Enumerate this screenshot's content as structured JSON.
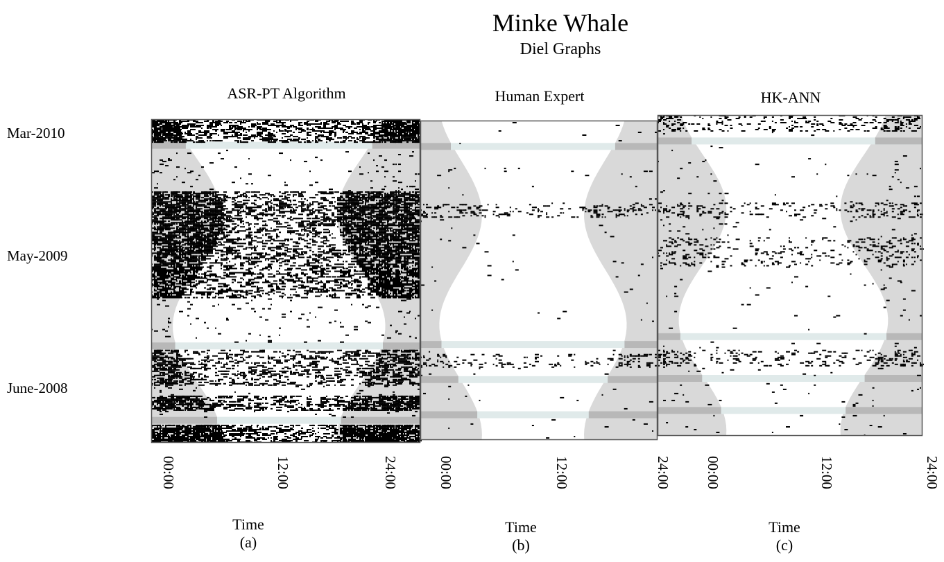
{
  "figure": {
    "title": "Minke Whale",
    "subtitle": "Diel Graphs"
  },
  "y_axis_labels": [
    "Mar-2010",
    "May-2009",
    "June-2008"
  ],
  "chart_data": [
    {
      "type": "scatter",
      "title": "ASR-PT Algorithm",
      "caption": "(a)",
      "xlabel": "Time",
      "x_ticks": [
        "00:00",
        "12:00",
        "24:00"
      ],
      "density": "very high",
      "colors": {
        "night": "#d9d9d9",
        "gap": "#e0eaea",
        "detections": "#000000"
      }
    },
    {
      "type": "scatter",
      "title": "Human Expert",
      "caption": "(b)",
      "xlabel": "Time",
      "x_ticks": [
        "00:00",
        "12:00",
        "24:00"
      ],
      "density": "low",
      "colors": {
        "night": "#d9d9d9",
        "gap": "#e0eaea",
        "detections": "#000000"
      }
    },
    {
      "type": "scatter",
      "title": "HK-ANN",
      "caption": "(c)",
      "xlabel": "Time",
      "x_ticks": [
        "00:00",
        "12:00",
        "24:00"
      ],
      "density": "medium",
      "colors": {
        "night": "#d9d9d9",
        "gap": "#e0eaea",
        "detections": "#000000"
      }
    }
  ]
}
